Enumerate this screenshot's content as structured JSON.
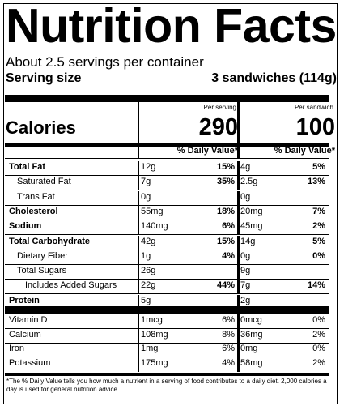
{
  "title": "Nutrition Facts",
  "servings_per_container": "About 2.5 servings per container",
  "serving_size_label": "Serving size",
  "serving_size_value": "3 sandwiches (114g)",
  "columns": [
    {
      "header": "Per serving",
      "calories": "290"
    },
    {
      "header": "Per sandwich",
      "calories": "100"
    }
  ],
  "calories_label": "Calories",
  "daily_value_header": "% Daily Value*",
  "nutrients": [
    {
      "name": "Total Fat",
      "bold": true,
      "indent": 0,
      "a1": "12g",
      "p1": "15%",
      "a2": "4g",
      "p2": "5%"
    },
    {
      "name": "Saturated Fat",
      "bold": false,
      "indent": 1,
      "a1": "7g",
      "p1": "35%",
      "a2": "2.5g",
      "p2": "13%"
    },
    {
      "name": "Trans Fat",
      "bold": false,
      "indent": 1,
      "a1": "0g",
      "p1": "",
      "a2": "0g",
      "p2": ""
    },
    {
      "name": "Cholesterol",
      "bold": true,
      "indent": 0,
      "a1": "55mg",
      "p1": "18%",
      "a2": "20mg",
      "p2": "7%"
    },
    {
      "name": "Sodium",
      "bold": true,
      "indent": 0,
      "a1": "140mg",
      "p1": "6%",
      "a2": "45mg",
      "p2": "2%"
    },
    {
      "name": "Total Carbohydrate",
      "bold": true,
      "indent": 0,
      "a1": "42g",
      "p1": "15%",
      "a2": "14g",
      "p2": "5%"
    },
    {
      "name": "Dietary Fiber",
      "bold": false,
      "indent": 1,
      "a1": "1g",
      "p1": "4%",
      "a2": "0g",
      "p2": "0%"
    },
    {
      "name": "Total Sugars",
      "bold": false,
      "indent": 1,
      "a1": "26g",
      "p1": "",
      "a2": "9g",
      "p2": ""
    },
    {
      "name": "Includes Added Sugars",
      "bold": false,
      "indent": 2,
      "a1": "22g",
      "p1": "44%",
      "a2": "7g",
      "p2": "14%"
    },
    {
      "name": "Protein",
      "bold": true,
      "indent": 0,
      "a1": "5g",
      "p1": "",
      "a2": "2g",
      "p2": ""
    }
  ],
  "vitamins": [
    {
      "name": "Vitamin D",
      "a1": "1mcg",
      "p1": "6%",
      "a2": "0mcg",
      "p2": "0%"
    },
    {
      "name": "Calcium",
      "a1": "108mg",
      "p1": "8%",
      "a2": "36mg",
      "p2": "2%"
    },
    {
      "name": "Iron",
      "a1": "1mg",
      "p1": "6%",
      "a2": "0mg",
      "p2": "0%"
    },
    {
      "name": "Potassium",
      "a1": "175mg",
      "p1": "4%",
      "a2": "58mg",
      "p2": "2%"
    }
  ],
  "footnote": "*The % Daily Value tells you how much a nutrient in a serving of food contributes to a daily diet. 2,000 calories a day is used for general nutrition advice."
}
